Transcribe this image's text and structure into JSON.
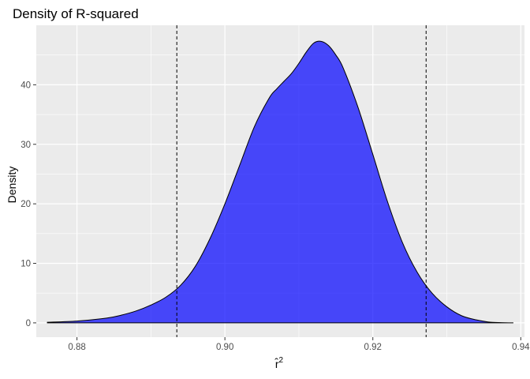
{
  "chart_data": {
    "type": "area",
    "title": "Density of R-squared",
    "xlabel": "r̂",
    "xlabel_superscript": "2",
    "ylabel": "Density",
    "xlim": [
      0.8745,
      0.9405
    ],
    "ylim": [
      -2.4,
      50.0
    ],
    "x_ticks": [
      0.88,
      0.9,
      0.92,
      0.94
    ],
    "x_tick_labels": [
      "0.88",
      "0.90",
      "0.92",
      "0.94"
    ],
    "x_minor_ticks": [
      0.87,
      0.89,
      0.91,
      0.93
    ],
    "y_ticks": [
      0,
      10,
      20,
      30,
      40
    ],
    "y_tick_labels": [
      "0",
      "10",
      "20",
      "30",
      "40"
    ],
    "y_minor_ticks": [
      5,
      15,
      25,
      35,
      45
    ],
    "grid": true,
    "panel_background": "#ebebeb",
    "grid_color": "#ffffff",
    "fill_color": "#0000ff",
    "fill_opacity": 0.7,
    "line_color": "#000000",
    "reference_lines": {
      "orientation": "vertical",
      "style": "dashed",
      "x": [
        0.8935,
        0.9272
      ]
    },
    "x": [
      0.876,
      0.88,
      0.884,
      0.886,
      0.888,
      0.89,
      0.892,
      0.894,
      0.896,
      0.898,
      0.9,
      0.902,
      0.904,
      0.906,
      0.907,
      0.908,
      0.909,
      0.91,
      0.911,
      0.912,
      0.913,
      0.914,
      0.915,
      0.916,
      0.918,
      0.92,
      0.922,
      0.924,
      0.926,
      0.928,
      0.93,
      0.932,
      0.934,
      0.936,
      0.939
    ],
    "y": [
      0.1,
      0.3,
      0.8,
      1.3,
      2.0,
      3.0,
      4.3,
      6.3,
      9.5,
      14.2,
      20.0,
      26.5,
      33.0,
      37.8,
      39.3,
      40.6,
      41.9,
      43.6,
      45.5,
      47.0,
      47.3,
      46.6,
      45.0,
      42.8,
      36.2,
      28.3,
      20.3,
      13.5,
      8.5,
      5.0,
      2.7,
      1.2,
      0.5,
      0.1,
      0.0
    ]
  }
}
